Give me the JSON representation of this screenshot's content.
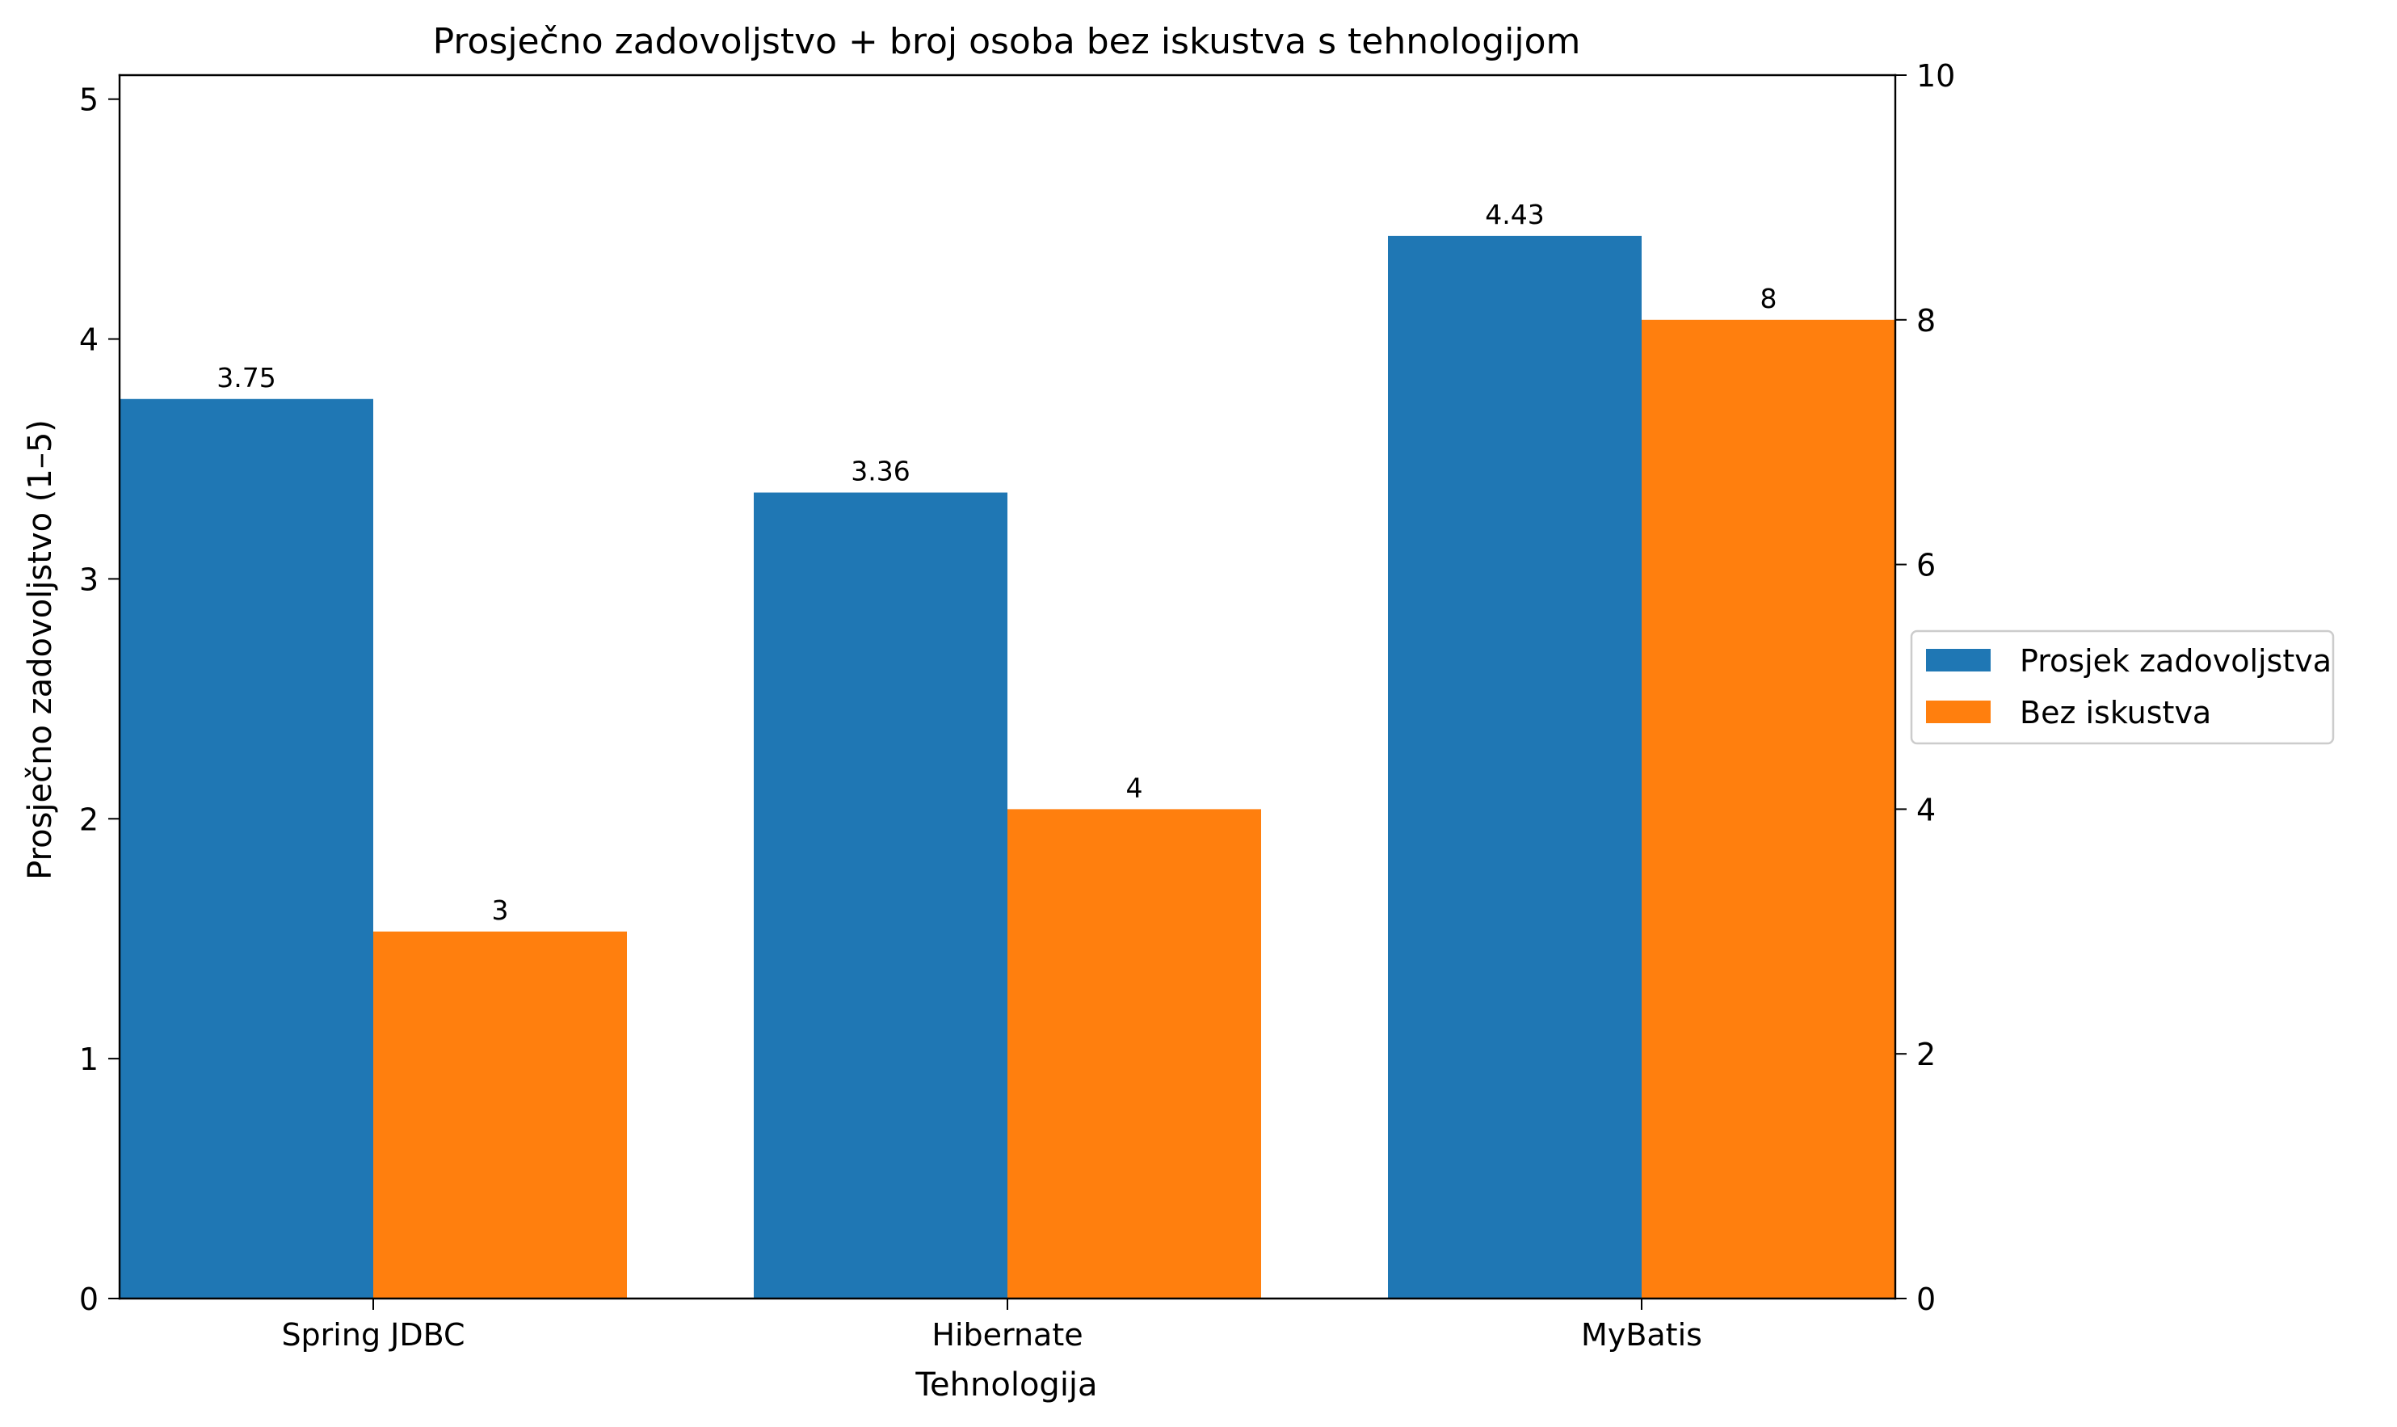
{
  "chart_data": {
    "type": "bar",
    "title": "Prosječno zadovoljstvo + broj osoba bez iskustva s tehnologijom",
    "xlabel": "Tehnologija",
    "ylabel": "Prosječno zadovoljstvo (1–5)",
    "y2label": "",
    "categories": [
      "Spring JDBC",
      "Hibernate",
      "MyBatis"
    ],
    "series": [
      {
        "name": "Prosjek zadovoljstva",
        "axis": "left",
        "color": "#1f77b4",
        "values": [
          3.75,
          3.36,
          4.43
        ],
        "labels": [
          "3.75",
          "3.36",
          "4.43"
        ]
      },
      {
        "name": "Bez iskustva",
        "axis": "right",
        "color": "#ff7f0e",
        "values": [
          3,
          4,
          8
        ],
        "labels": [
          "3",
          "4",
          "8"
        ]
      }
    ],
    "ylim": [
      0,
      5.1
    ],
    "y2lim": [
      0,
      10
    ],
    "yticks": [
      0,
      1,
      2,
      3,
      4,
      5
    ],
    "y2ticks": [
      0,
      2,
      4,
      6,
      8,
      10
    ],
    "grid": false,
    "legend_position": "right"
  }
}
